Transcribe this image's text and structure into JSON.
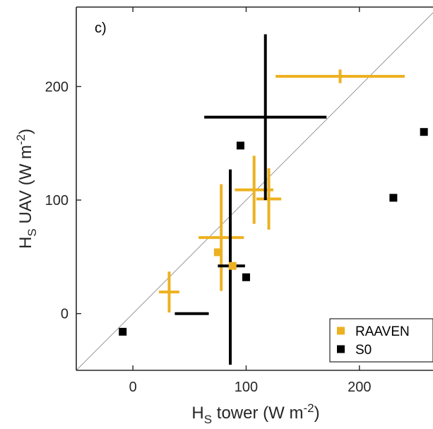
{
  "chart_data": {
    "type": "scatter",
    "panel_label": "c)",
    "xlabel": {
      "main": "H",
      "sub": "S",
      "rest": " tower (W m",
      "sup": "-2",
      "close": ")"
    },
    "ylabel": {
      "main": "H",
      "sub": "S",
      "rest": " UAV (W m",
      "sup": "-2",
      "close": ")"
    },
    "xlim": [
      -50,
      265
    ],
    "ylim": [
      -50,
      270
    ],
    "xticks": [
      0,
      100,
      200
    ],
    "yticks": [
      0,
      100,
      200
    ],
    "xtick_labels": [
      "0",
      "100",
      "200"
    ],
    "ytick_labels": [
      "0",
      "100",
      "200"
    ],
    "one_to_one_line": true,
    "grid": false,
    "legend_position": "bottom-right",
    "series": [
      {
        "name": "RAAVEN",
        "color": "#EDB120",
        "marker": "square",
        "points": [
          {
            "x": 32,
            "y": 19,
            "xerr": 9,
            "yerr": 18
          },
          {
            "x": 75,
            "y": 54
          },
          {
            "x": 78,
            "y": 67,
            "xerr": 20,
            "yerr": 47
          },
          {
            "x": 88,
            "y": 42
          },
          {
            "x": 107,
            "y": 109,
            "xerr": 17,
            "yerr": 30
          },
          {
            "x": 120,
            "y": 101,
            "xerr": 11,
            "yerr": 27
          },
          {
            "x": 183,
            "y": 209,
            "xerr": 57,
            "yerr": 6
          }
        ]
      },
      {
        "name": "S0",
        "color": "#000000",
        "marker": "square",
        "points": [
          {
            "x": -9,
            "y": -16
          },
          {
            "x": 52,
            "y": 0,
            "xerr": 15
          },
          {
            "x": 87,
            "y": 42,
            "xerr": 12
          },
          {
            "x": 86,
            "y": 41,
            "yerr": 86
          },
          {
            "x": 95,
            "y": 148
          },
          {
            "x": 100,
            "y": 32
          },
          {
            "x": 117,
            "y": 173,
            "xerr": 54,
            "yerr": 73
          },
          {
            "x": 230,
            "y": 102
          },
          {
            "x": 257,
            "y": 160
          }
        ]
      }
    ]
  }
}
